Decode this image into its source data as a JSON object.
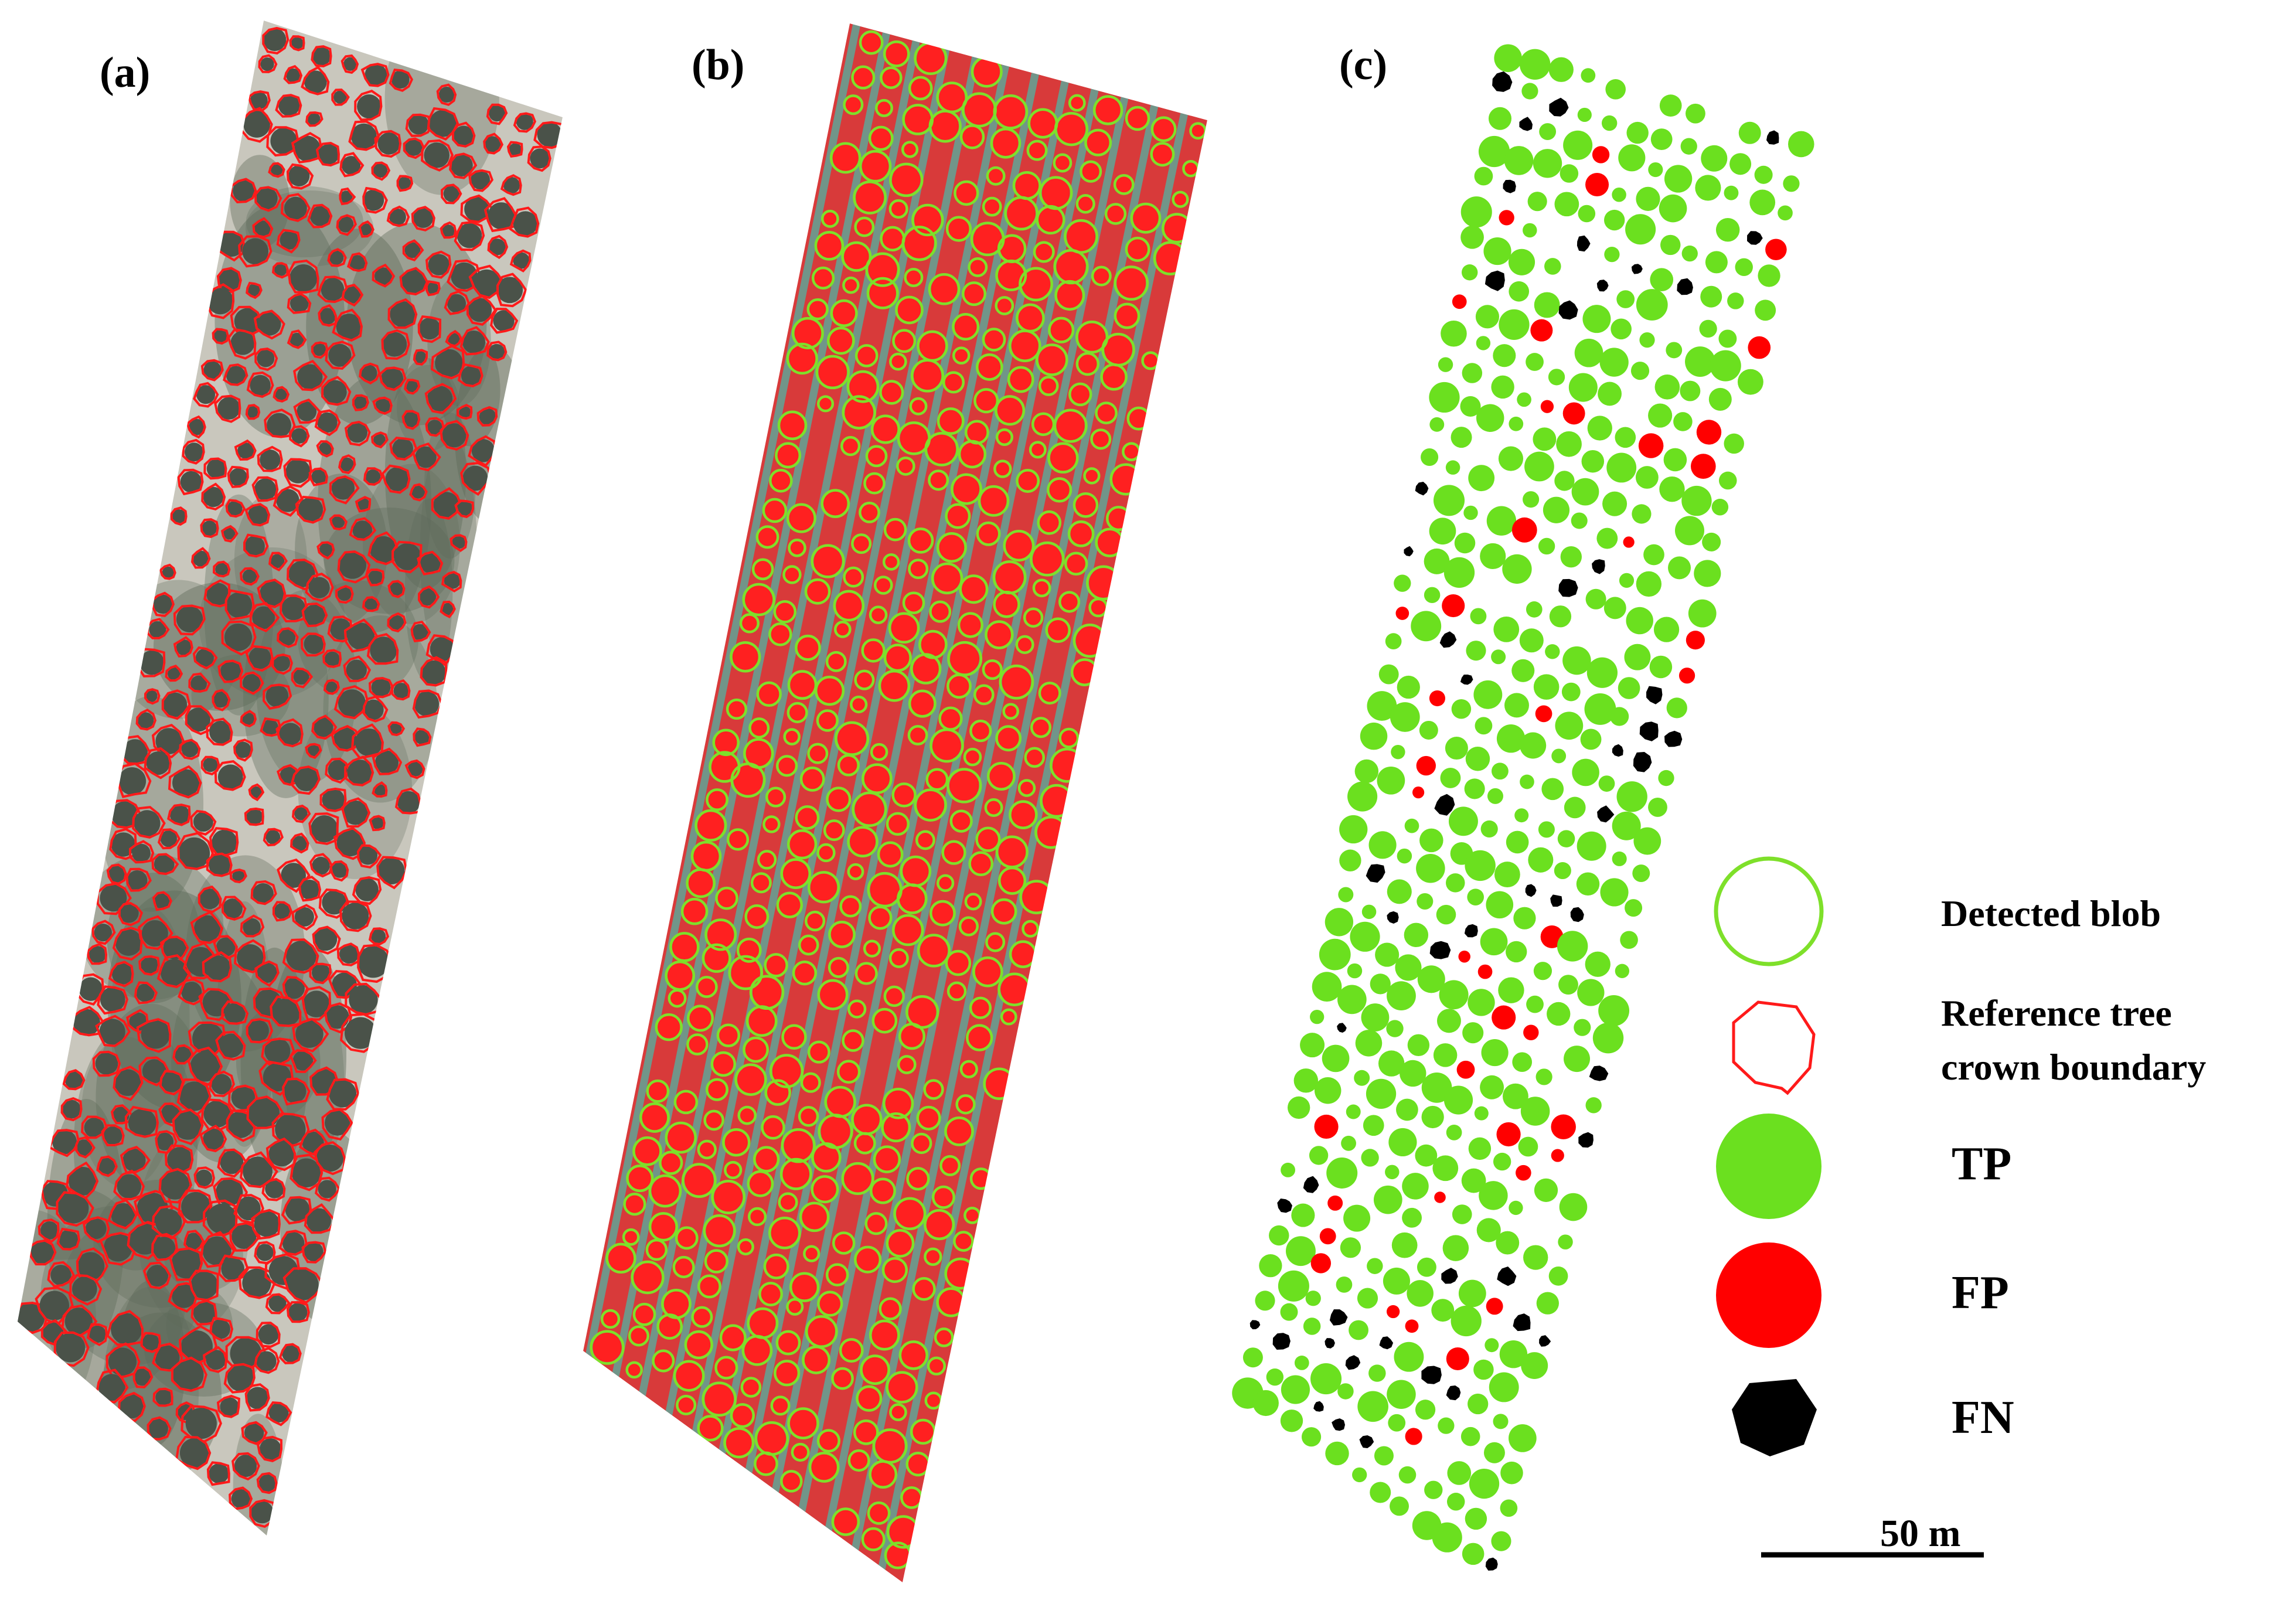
{
  "panels": [
    {
      "label": "(a)"
    },
    {
      "label": "(b)"
    },
    {
      "label": "(c)"
    }
  ],
  "colors": {
    "rgb_ground": "#c9c7bd",
    "rgb_vegetation": "#5e6b5a",
    "rgb_crown": "#4a5249",
    "reference_boundary": "#ff1a1a",
    "nir_background": "#d83a3a",
    "nir_track": "#4fb4a4",
    "nir_crown": "#ff2020",
    "detected_blob": "#7ee02a",
    "tp": "#6be01f",
    "fp": "#ff0000",
    "fn": "#000000"
  },
  "legend": {
    "items": [
      {
        "key": "blob",
        "label": "Detected blob"
      },
      {
        "key": "ref",
        "label": "Reference tree crown boundary",
        "lines": [
          "Reference tree",
          "crown boundary"
        ]
      },
      {
        "key": "tp",
        "label": "TP"
      },
      {
        "key": "fp",
        "label": "FP"
      },
      {
        "key": "fn",
        "label": "FN"
      }
    ]
  },
  "scale_bar": {
    "label": "50 m",
    "length_m": 50
  }
}
